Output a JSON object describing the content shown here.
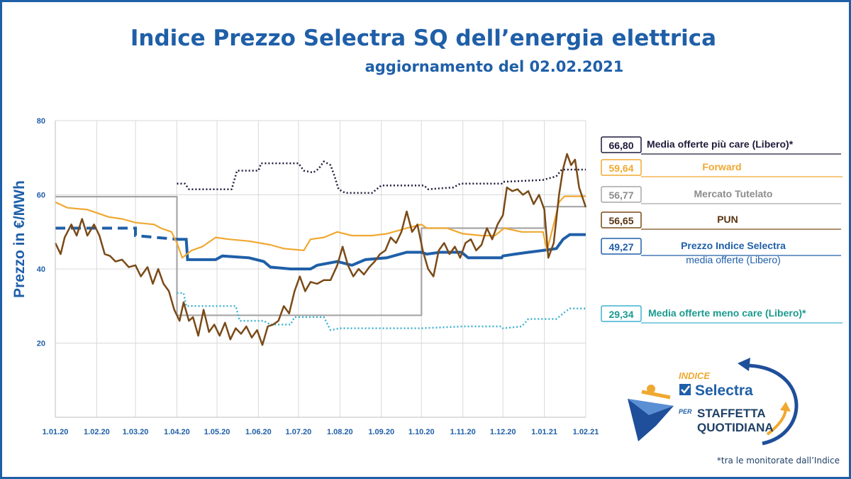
{
  "header": {
    "title": "Indice Prezzo Selectra SQ dell’energia elettrica",
    "subtitle": "aggiornamento del 02.02.2021"
  },
  "footnote": "*tra le monitorate dall’Indice",
  "logo": {
    "word_indice": "INDICE",
    "word_selectra": "Selectra",
    "word_per": "PER",
    "word_staffetta": "STAFFETTA",
    "word_quotidiana": "QUOTIDIANA"
  },
  "chart_data": {
    "type": "line",
    "ylabel": "Prezzo in €/MWh",
    "ylim": [
      0,
      80
    ],
    "yticks": [
      20,
      40,
      60,
      80
    ],
    "xticks": [
      "1.01.20",
      "1.02.20",
      "1.03.20",
      "1.04.20",
      "1.05.20",
      "1.06.20",
      "1.07.20",
      "1.08.20",
      "1.09.20",
      "1.10.20",
      "1.11.20",
      "1.12.20",
      "1.01.21",
      "1.02.21"
    ],
    "xtick_dates": [
      "2020-01-01",
      "2020-02-01",
      "2020-03-01",
      "2020-04-01",
      "2020-05-01",
      "2020-06-01",
      "2020-07-01",
      "2020-08-01",
      "2020-09-01",
      "2020-10-01",
      "2020-11-01",
      "2020-12-01",
      "2021-01-01",
      "2021-02-01"
    ],
    "grid": true,
    "legend_position": "right",
    "series": [
      {
        "name": "Media offerte più care (Libero)*",
        "value_label": "66,80",
        "color": "#1e1b3a",
        "style": "dotted",
        "points": [
          [
            "2020-04-01",
            63.0
          ],
          [
            "2020-04-07",
            63.0
          ],
          [
            "2020-04-10",
            61.5
          ],
          [
            "2020-05-12",
            61.5
          ],
          [
            "2020-05-16",
            66.5
          ],
          [
            "2020-06-01",
            66.5
          ],
          [
            "2020-06-03",
            68.5
          ],
          [
            "2020-07-01",
            68.5
          ],
          [
            "2020-07-05",
            66.5
          ],
          [
            "2020-07-12",
            66.0
          ],
          [
            "2020-07-16",
            67.0
          ],
          [
            "2020-07-20",
            69.0
          ],
          [
            "2020-07-25",
            68.0
          ],
          [
            "2020-07-28",
            65.0
          ],
          [
            "2020-07-31",
            61.5
          ],
          [
            "2020-08-05",
            60.5
          ],
          [
            "2020-08-25",
            60.5
          ],
          [
            "2020-09-01",
            62.5
          ],
          [
            "2020-10-03",
            62.5
          ],
          [
            "2020-10-06",
            61.5
          ],
          [
            "2020-10-25",
            62.0
          ],
          [
            "2020-10-30",
            63.0
          ],
          [
            "2020-11-30",
            63.0
          ],
          [
            "2020-12-01",
            63.5
          ],
          [
            "2020-12-31",
            64.0
          ],
          [
            "2021-01-10",
            65.0
          ],
          [
            "2021-01-14",
            66.8
          ],
          [
            "2021-02-01",
            66.8
          ]
        ]
      },
      {
        "name": "Forward",
        "value_label": "59,64",
        "color": "#f0a830",
        "style": "solid",
        "points": [
          [
            "2020-01-01",
            58.0
          ],
          [
            "2020-01-10",
            56.5
          ],
          [
            "2020-01-25",
            56.0
          ],
          [
            "2020-02-10",
            54.0
          ],
          [
            "2020-02-20",
            53.5
          ],
          [
            "2020-03-01",
            52.5
          ],
          [
            "2020-03-15",
            52.0
          ],
          [
            "2020-03-20",
            51.0
          ],
          [
            "2020-03-28",
            50.0
          ],
          [
            "2020-04-01",
            47.0
          ],
          [
            "2020-04-05",
            43.0
          ],
          [
            "2020-04-12",
            45.0
          ],
          [
            "2020-04-20",
            46.0
          ],
          [
            "2020-04-30",
            48.5
          ],
          [
            "2020-05-10",
            48.0
          ],
          [
            "2020-05-25",
            47.5
          ],
          [
            "2020-06-10",
            46.5
          ],
          [
            "2020-06-20",
            45.5
          ],
          [
            "2020-07-05",
            45.0
          ],
          [
            "2020-07-10",
            48.0
          ],
          [
            "2020-07-20",
            48.5
          ],
          [
            "2020-07-30",
            50.0
          ],
          [
            "2020-08-10",
            49.0
          ],
          [
            "2020-08-25",
            49.0
          ],
          [
            "2020-09-05",
            49.5
          ],
          [
            "2020-09-20",
            51.0
          ],
          [
            "2020-10-01",
            52.0
          ],
          [
            "2020-10-05",
            51.0
          ],
          [
            "2020-10-20",
            51.0
          ],
          [
            "2020-11-01",
            49.5
          ],
          [
            "2020-11-15",
            49.0
          ],
          [
            "2020-11-25",
            49.0
          ],
          [
            "2020-12-02",
            51.0
          ],
          [
            "2020-12-15",
            50.0
          ],
          [
            "2020-12-31",
            50.0
          ],
          [
            "2021-01-03",
            45.0
          ],
          [
            "2021-01-08",
            52.0
          ],
          [
            "2021-01-12",
            58.0
          ],
          [
            "2021-01-16",
            59.6
          ],
          [
            "2021-02-01",
            59.6
          ]
        ]
      },
      {
        "name": "Mercato Tutelato",
        "value_label": "56,77",
        "color": "#a6a6a6",
        "style": "solid",
        "points": [
          [
            "2020-01-01",
            59.5
          ],
          [
            "2020-04-01",
            59.5
          ],
          [
            "2020-04-01",
            27.5
          ],
          [
            "2020-10-01",
            27.5
          ],
          [
            "2020-10-01",
            51.0
          ],
          [
            "2021-01-01",
            51.0
          ],
          [
            "2021-01-01",
            56.8
          ],
          [
            "2021-02-01",
            56.8
          ]
        ]
      },
      {
        "name": "PUN",
        "value_label": "56,65",
        "color": "#7a4a17",
        "style": "solid",
        "points": [
          [
            "2020-01-01",
            47.0
          ],
          [
            "2020-01-05",
            44.0
          ],
          [
            "2020-01-08",
            48.5
          ],
          [
            "2020-01-13",
            52.0
          ],
          [
            "2020-01-17",
            49.0
          ],
          [
            "2020-01-21",
            53.5
          ],
          [
            "2020-01-25",
            49.0
          ],
          [
            "2020-01-30",
            52.0
          ],
          [
            "2020-02-03",
            49.0
          ],
          [
            "2020-02-07",
            44.0
          ],
          [
            "2020-02-11",
            43.5
          ],
          [
            "2020-02-15",
            42.0
          ],
          [
            "2020-02-20",
            42.5
          ],
          [
            "2020-02-25",
            40.5
          ],
          [
            "2020-03-01",
            41.0
          ],
          [
            "2020-03-05",
            38.0
          ],
          [
            "2020-03-10",
            40.5
          ],
          [
            "2020-03-14",
            36.0
          ],
          [
            "2020-03-18",
            40.0
          ],
          [
            "2020-03-22",
            36.0
          ],
          [
            "2020-03-26",
            34.0
          ],
          [
            "2020-03-30",
            29.0
          ],
          [
            "2020-04-03",
            26.0
          ],
          [
            "2020-04-06",
            31.0
          ],
          [
            "2020-04-10",
            26.0
          ],
          [
            "2020-04-13",
            27.0
          ],
          [
            "2020-04-17",
            22.0
          ],
          [
            "2020-04-21",
            29.0
          ],
          [
            "2020-04-25",
            23.0
          ],
          [
            "2020-04-29",
            25.0
          ],
          [
            "2020-05-03",
            22.0
          ],
          [
            "2020-05-07",
            25.5
          ],
          [
            "2020-05-11",
            21.0
          ],
          [
            "2020-05-15",
            24.0
          ],
          [
            "2020-05-19",
            22.5
          ],
          [
            "2020-05-23",
            24.5
          ],
          [
            "2020-05-27",
            21.5
          ],
          [
            "2020-05-31",
            23.5
          ],
          [
            "2020-06-04",
            19.5
          ],
          [
            "2020-06-08",
            24.5
          ],
          [
            "2020-06-12",
            25.0
          ],
          [
            "2020-06-16",
            26.0
          ],
          [
            "2020-06-20",
            30.0
          ],
          [
            "2020-06-24",
            28.0
          ],
          [
            "2020-06-28",
            34.0
          ],
          [
            "2020-07-02",
            38.0
          ],
          [
            "2020-07-06",
            34.0
          ],
          [
            "2020-07-10",
            36.5
          ],
          [
            "2020-07-15",
            36.0
          ],
          [
            "2020-07-20",
            37.0
          ],
          [
            "2020-07-25",
            37.0
          ],
          [
            "2020-07-30",
            41.0
          ],
          [
            "2020-08-03",
            46.0
          ],
          [
            "2020-08-07",
            41.0
          ],
          [
            "2020-08-11",
            38.0
          ],
          [
            "2020-08-15",
            40.0
          ],
          [
            "2020-08-19",
            38.5
          ],
          [
            "2020-08-23",
            40.5
          ],
          [
            "2020-08-27",
            42.0
          ],
          [
            "2020-08-31",
            44.0
          ],
          [
            "2020-09-04",
            45.0
          ],
          [
            "2020-09-08",
            48.5
          ],
          [
            "2020-09-12",
            47.0
          ],
          [
            "2020-09-16",
            50.0
          ],
          [
            "2020-09-20",
            55.5
          ],
          [
            "2020-09-24",
            50.0
          ],
          [
            "2020-09-28",
            52.0
          ],
          [
            "2020-10-02",
            45.0
          ],
          [
            "2020-10-06",
            40.0
          ],
          [
            "2020-10-10",
            38.0
          ],
          [
            "2020-10-14",
            45.0
          ],
          [
            "2020-10-18",
            47.0
          ],
          [
            "2020-10-22",
            44.0
          ],
          [
            "2020-10-26",
            46.0
          ],
          [
            "2020-10-30",
            43.0
          ],
          [
            "2020-11-03",
            47.0
          ],
          [
            "2020-11-07",
            48.0
          ],
          [
            "2020-11-11",
            45.0
          ],
          [
            "2020-11-15",
            46.5
          ],
          [
            "2020-11-19",
            51.0
          ],
          [
            "2020-11-23",
            48.0
          ],
          [
            "2020-11-27",
            52.0
          ],
          [
            "2020-12-01",
            54.5
          ],
          [
            "2020-12-04",
            62.0
          ],
          [
            "2020-12-08",
            61.0
          ],
          [
            "2020-12-12",
            61.5
          ],
          [
            "2020-12-16",
            60.0
          ],
          [
            "2020-12-20",
            61.0
          ],
          [
            "2020-12-24",
            57.5
          ],
          [
            "2020-12-28",
            60.0
          ],
          [
            "2021-01-01",
            56.0
          ],
          [
            "2021-01-04",
            43.0
          ],
          [
            "2021-01-08",
            47.0
          ],
          [
            "2021-01-12",
            60.0
          ],
          [
            "2021-01-15",
            67.0
          ],
          [
            "2021-01-18",
            71.0
          ],
          [
            "2021-01-21",
            68.0
          ],
          [
            "2021-01-24",
            69.5
          ],
          [
            "2021-01-27",
            62.0
          ],
          [
            "2021-02-01",
            56.65
          ]
        ]
      },
      {
        "name": "Prezzo Indice Selectra",
        "name_line2": "media offerte (Libero)",
        "value_label": "49,27",
        "color": "#1f5fa8",
        "style": "solid",
        "dashed_until": "2020-04-01",
        "points": [
          [
            "2020-01-01",
            51.0
          ],
          [
            "2020-03-01",
            51.0
          ],
          [
            "2020-03-01",
            49.0
          ],
          [
            "2020-04-01",
            48.0
          ],
          [
            "2020-04-08",
            48.0
          ],
          [
            "2020-04-09",
            42.5
          ],
          [
            "2020-04-30",
            42.5
          ],
          [
            "2020-05-05",
            43.5
          ],
          [
            "2020-05-25",
            43.0
          ],
          [
            "2020-06-05",
            42.0
          ],
          [
            "2020-06-10",
            40.5
          ],
          [
            "2020-06-25",
            40.0
          ],
          [
            "2020-07-10",
            40.0
          ],
          [
            "2020-07-15",
            41.0
          ],
          [
            "2020-07-30",
            42.0
          ],
          [
            "2020-08-10",
            41.0
          ],
          [
            "2020-08-20",
            42.5
          ],
          [
            "2020-09-05",
            43.0
          ],
          [
            "2020-09-20",
            44.5
          ],
          [
            "2020-10-01",
            44.5
          ],
          [
            "2020-10-05",
            44.0
          ],
          [
            "2020-10-15",
            44.5
          ],
          [
            "2020-10-31",
            44.5
          ],
          [
            "2020-11-05",
            43.0
          ],
          [
            "2020-11-30",
            43.0
          ],
          [
            "2020-12-01",
            43.5
          ],
          [
            "2020-12-10",
            44.0
          ],
          [
            "2020-12-20",
            44.5
          ],
          [
            "2020-12-31",
            45.0
          ],
          [
            "2021-01-10",
            45.5
          ],
          [
            "2021-01-15",
            48.0
          ],
          [
            "2021-01-20",
            49.27
          ],
          [
            "2021-02-01",
            49.27
          ]
        ]
      },
      {
        "name": "Media offerte meno care (Libero)*",
        "value_label": "29,34",
        "color": "#3fb2cf",
        "style": "dotted",
        "points": [
          [
            "2020-04-01",
            33.5
          ],
          [
            "2020-04-06",
            33.5
          ],
          [
            "2020-04-08",
            30.0
          ],
          [
            "2020-05-15",
            30.0
          ],
          [
            "2020-05-18",
            26.0
          ],
          [
            "2020-06-05",
            26.0
          ],
          [
            "2020-06-10",
            25.0
          ],
          [
            "2020-06-25",
            25.0
          ],
          [
            "2020-06-28",
            27.0
          ],
          [
            "2020-07-20",
            27.0
          ],
          [
            "2020-07-25",
            23.5
          ],
          [
            "2020-08-01",
            24.0
          ],
          [
            "2020-09-01",
            24.0
          ],
          [
            "2020-10-01",
            24.0
          ],
          [
            "2020-11-01",
            24.5
          ],
          [
            "2020-11-30",
            24.5
          ],
          [
            "2020-12-01",
            24.0
          ],
          [
            "2020-12-15",
            24.5
          ],
          [
            "2020-12-20",
            26.5
          ],
          [
            "2021-01-10",
            26.5
          ],
          [
            "2021-01-15",
            28.0
          ],
          [
            "2021-01-20",
            29.34
          ],
          [
            "2021-02-01",
            29.34
          ]
        ]
      }
    ]
  }
}
